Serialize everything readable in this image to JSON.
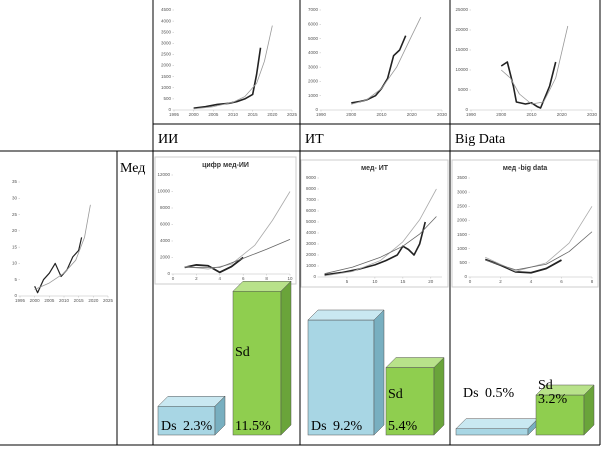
{
  "top_charts": [
    {
      "label": "ИИ",
      "xlim": [
        1995,
        2025
      ],
      "xticks": [
        1995,
        2000,
        2005,
        2010,
        2015,
        2020,
        2025
      ],
      "ylim": [
        0,
        4500
      ],
      "yticks": [
        0,
        500,
        1000,
        1500,
        2000,
        2500,
        3000,
        3500,
        4000,
        4500
      ],
      "lines": [
        {
          "color": "#222222",
          "width": 1.6,
          "x": [
            2000,
            2003,
            2006,
            2009,
            2011,
            2013,
            2015,
            2016,
            2017
          ],
          "y": [
            80,
            150,
            250,
            300,
            380,
            500,
            700,
            1600,
            2800
          ]
        },
        {
          "color": "#999999",
          "width": 0.8,
          "x": [
            2000,
            2005,
            2010,
            2013,
            2016,
            2018,
            2020
          ],
          "y": [
            50,
            150,
            350,
            600,
            1200,
            2200,
            3800
          ]
        }
      ]
    },
    {
      "label": "ИТ",
      "xlim": [
        1990,
        2030
      ],
      "xticks": [
        1990,
        2000,
        2010,
        2020,
        2030
      ],
      "ylim": [
        0,
        7000
      ],
      "yticks": [
        0,
        1000,
        2000,
        3000,
        4000,
        5000,
        6000,
        7000
      ],
      "lines": [
        {
          "color": "#222222",
          "width": 1.6,
          "x": [
            2000,
            2003,
            2005,
            2008,
            2010,
            2012,
            2014,
            2016,
            2018
          ],
          "y": [
            500,
            600,
            700,
            1000,
            1500,
            2200,
            3800,
            4200,
            5200
          ]
        },
        {
          "color": "#999999",
          "width": 0.8,
          "x": [
            2000,
            2005,
            2010,
            2015,
            2020,
            2023
          ],
          "y": [
            400,
            700,
            1500,
            3000,
            5200,
            6500
          ]
        }
      ]
    },
    {
      "label": "Big Data",
      "xlim": [
        1990,
        2030
      ],
      "xticks": [
        1990,
        2000,
        2010,
        2020,
        2030
      ],
      "ylim": [
        0,
        25000
      ],
      "yticks": [
        0,
        5000,
        10000,
        15000,
        20000,
        25000
      ],
      "lines": [
        {
          "color": "#222222",
          "width": 1.6,
          "x": [
            2000,
            2002,
            2004,
            2005,
            2008,
            2010,
            2012,
            2013,
            2016,
            2018
          ],
          "y": [
            11000,
            12000,
            6000,
            2000,
            1500,
            1800,
            800,
            500,
            6000,
            12000
          ]
        },
        {
          "color": "#999999",
          "width": 0.8,
          "x": [
            2000,
            2003,
            2006,
            2010,
            2014,
            2018,
            2022
          ],
          "y": [
            10000,
            8000,
            4000,
            1500,
            2000,
            8000,
            21000
          ]
        }
      ]
    }
  ],
  "row_label": "Мед",
  "left_chart": {
    "xlim": [
      1995,
      2025
    ],
    "xticks": [
      1995,
      2000,
      2005,
      2010,
      2015,
      2020,
      2025
    ],
    "ylim": [
      0,
      35
    ],
    "yticks": [
      0,
      5,
      10,
      15,
      20,
      25,
      30,
      35
    ],
    "lines": [
      {
        "color": "#222222",
        "width": 1.2,
        "x": [
          2000,
          2001,
          2003,
          2005,
          2007,
          2008,
          2009,
          2011,
          2013,
          2015,
          2016
        ],
        "y": [
          3,
          1,
          5,
          7,
          10,
          8,
          6,
          8,
          12,
          14,
          18
        ]
      },
      {
        "color": "#999999",
        "width": 0.8,
        "x": [
          2000,
          2005,
          2010,
          2014,
          2017,
          2019
        ],
        "y": [
          2,
          4,
          7,
          11,
          18,
          28
        ]
      }
    ]
  },
  "bottom_charts": [
    {
      "title": "цифр мед-ИИ",
      "xlim": [
        0,
        10
      ],
      "xticks": [
        0,
        2,
        4,
        6,
        8,
        10
      ],
      "ylim": [
        0,
        12000
      ],
      "yticks": [
        0,
        2000,
        4000,
        6000,
        8000,
        10000,
        12000
      ],
      "lines": [
        {
          "color": "#222222",
          "width": 1.8,
          "x": [
            1,
            2,
            3,
            4,
            5,
            6
          ],
          "y": [
            800,
            1100,
            1000,
            200,
            900,
            2000
          ]
        },
        {
          "color": "#aaaaaa",
          "width": 0.8,
          "x": [
            1,
            3,
            5,
            7,
            8.5,
            10
          ],
          "y": [
            900,
            600,
            1200,
            3500,
            6500,
            10000
          ]
        },
        {
          "color": "#666666",
          "width": 0.8,
          "x": [
            1,
            4,
            6,
            8,
            10
          ],
          "y": [
            800,
            800,
            1900,
            3000,
            4200
          ]
        }
      ],
      "bars": [
        {
          "label": "Ds",
          "value": 2.3,
          "value_label": "2.3%"
        },
        {
          "label": "Sd",
          "value": 11.5,
          "value_label": "11.5%"
        }
      ]
    },
    {
      "title": "мед- ИТ",
      "xlim": [
        0,
        22
      ],
      "xticks": [
        5,
        10,
        15,
        20
      ],
      "ylim": [
        0,
        9000
      ],
      "yticks": [
        0,
        1000,
        2000,
        3000,
        4000,
        5000,
        6000,
        7000,
        8000,
        9000
      ],
      "lines": [
        {
          "color": "#222222",
          "width": 1.6,
          "x": [
            1,
            4,
            7,
            10,
            12,
            14,
            15,
            16,
            17,
            18,
            19
          ],
          "y": [
            200,
            400,
            700,
            1100,
            1500,
            2000,
            2800,
            2500,
            2000,
            3000,
            5000
          ]
        },
        {
          "color": "#aaaaaa",
          "width": 0.8,
          "x": [
            1,
            6,
            11,
            15,
            18,
            21
          ],
          "y": [
            100,
            500,
            1500,
            3200,
            5200,
            8000
          ]
        },
        {
          "color": "#666666",
          "width": 0.8,
          "x": [
            1,
            6,
            11,
            15,
            18,
            21
          ],
          "y": [
            300,
            900,
            1800,
            2800,
            3900,
            5500
          ]
        }
      ],
      "bars": [
        {
          "label": "Ds",
          "value": 9.2,
          "value_label": "9.2%"
        },
        {
          "label": "Sd",
          "value": 5.4,
          "value_label": "5.4%"
        }
      ]
    },
    {
      "title": "мед -big data",
      "xlim": [
        0,
        8
      ],
      "xticks": [
        0,
        2,
        4,
        6,
        8
      ],
      "ylim": [
        0,
        3500
      ],
      "yticks": [
        0,
        500,
        1000,
        1500,
        2000,
        2500,
        3000,
        3500
      ],
      "lines": [
        {
          "color": "#222222",
          "width": 1.8,
          "x": [
            1,
            2,
            3,
            4,
            5,
            6
          ],
          "y": [
            620,
            420,
            180,
            150,
            300,
            600
          ]
        },
        {
          "color": "#aaaaaa",
          "width": 0.8,
          "x": [
            1,
            3,
            5,
            6.5,
            8
          ],
          "y": [
            700,
            200,
            500,
            1200,
            2500
          ]
        },
        {
          "color": "#666666",
          "width": 0.8,
          "x": [
            1,
            3,
            5,
            6.5,
            8
          ],
          "y": [
            600,
            250,
            450,
            900,
            1600
          ]
        }
      ],
      "bars": [
        {
          "label": "Ds",
          "value": 0.5,
          "value_label": "0.5%"
        },
        {
          "label": "Sd",
          "value": 3.2,
          "value_label": "3.2%"
        }
      ]
    }
  ]
}
